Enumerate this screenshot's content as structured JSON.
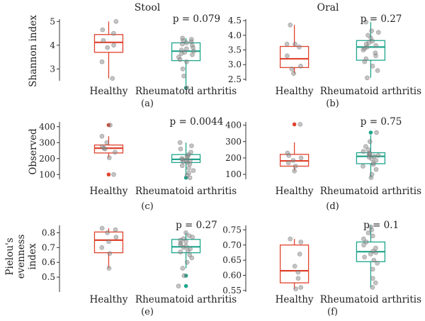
{
  "column_titles": [
    "Stool",
    "Oral"
  ],
  "row_ylabels": [
    [
      "Shannon index"
    ],
    [
      "Observed"
    ],
    [
      "Pielou's",
      "evenness",
      "index"
    ]
  ],
  "colors": {
    "healthy": "#E0432E",
    "ra": "#1FA58C",
    "points": "#8a8a8a",
    "axis": "#333333"
  },
  "chart_data": [
    {
      "type": "box",
      "panel": "(a)",
      "ylabel": "Shannon index",
      "p_value": "p = 0.079",
      "categories": [
        "Healthy",
        "Rheumatoid arthritis"
      ],
      "ylim": [
        2.5,
        5.1
      ],
      "yticks": [
        "3",
        "4",
        "5"
      ],
      "series": [
        {
          "category": "Healthy",
          "min": 2.6,
          "q1": 3.7,
          "median": 4.12,
          "q3": 4.45,
          "max": 5.0,
          "outliers": [],
          "points": [
            2.6,
            3.3,
            3.9,
            4.0,
            4.2,
            4.5,
            4.65,
            5.0
          ]
        },
        {
          "category": "Rheumatoid arthritis",
          "min": 2.3,
          "q1": 3.35,
          "median": 3.75,
          "q3": 4.1,
          "max": 4.3,
          "outliers": [
            2.2
          ],
          "points": [
            2.2,
            2.7,
            3.0,
            3.3,
            3.4,
            3.5,
            3.6,
            3.65,
            3.7,
            3.75,
            3.8,
            3.85,
            3.9,
            4.0,
            4.05,
            4.1,
            4.15,
            4.2,
            4.25,
            4.3
          ]
        }
      ]
    },
    {
      "type": "box",
      "panel": "(b)",
      "ylabel": "",
      "p_value": "p = 0.27",
      "categories": [
        "Healthy",
        "Rheumatoid arthritis"
      ],
      "ylim": [
        2.45,
        4.55
      ],
      "yticks": [
        "2.5",
        "3.0",
        "3.5",
        "4.0",
        "4.5"
      ],
      "series": [
        {
          "category": "Healthy",
          "min": 2.7,
          "q1": 2.9,
          "median": 3.2,
          "q3": 3.62,
          "max": 4.35,
          "outliers": [],
          "points": [
            2.7,
            2.85,
            2.95,
            3.3,
            3.6,
            3.7,
            3.7,
            4.35
          ]
        },
        {
          "category": "Rheumatoid arthritis",
          "min": 2.55,
          "q1": 3.15,
          "median": 3.6,
          "q3": 3.82,
          "max": 4.45,
          "outliers": [],
          "points": [
            2.55,
            2.8,
            2.95,
            3.1,
            3.2,
            3.3,
            3.4,
            3.5,
            3.55,
            3.6,
            3.65,
            3.7,
            3.75,
            3.8,
            3.9,
            4.0,
            4.1,
            4.15,
            4.45
          ]
        }
      ]
    },
    {
      "type": "box",
      "panel": "(c)",
      "ylabel": "Observed",
      "p_value": "p = 0.0044",
      "categories": [
        "Healthy",
        "Rheumatoid arthritis"
      ],
      "ylim": [
        70,
        430
      ],
      "yticks": [
        "100",
        "200",
        "300",
        "400"
      ],
      "series": [
        {
          "category": "Healthy",
          "min": 205,
          "q1": 235,
          "median": 265,
          "q3": 285,
          "max": 340,
          "outliers": [
            100,
            410
          ],
          "points": [
            100,
            205,
            240,
            260,
            265,
            275,
            300,
            340,
            410
          ]
        },
        {
          "category": "Rheumatoid arthritis",
          "min": 95,
          "q1": 175,
          "median": 195,
          "q3": 225,
          "max": 300,
          "outliers": [
            80
          ],
          "points": [
            80,
            95,
            110,
            125,
            140,
            155,
            165,
            175,
            180,
            185,
            190,
            195,
            200,
            210,
            215,
            225,
            240,
            260,
            280,
            300
          ]
        }
      ]
    },
    {
      "type": "box",
      "panel": "(d)",
      "ylabel": "",
      "p_value": "p = 0.75",
      "categories": [
        "Healthy",
        "Rheumatoid arthritis"
      ],
      "ylim": [
        70,
        420
      ],
      "yticks": [
        "100",
        "200",
        "300",
        "400"
      ],
      "series": [
        {
          "category": "Healthy",
          "min": 120,
          "q1": 150,
          "median": 182,
          "q3": 222,
          "max": 295,
          "outliers": [
            405
          ],
          "points": [
            120,
            150,
            170,
            185,
            200,
            215,
            230,
            405
          ]
        },
        {
          "category": "Rheumatoid arthritis",
          "min": 80,
          "q1": 165,
          "median": 210,
          "q3": 232,
          "max": 340,
          "outliers": [
            355
          ],
          "points": [
            80,
            100,
            130,
            150,
            160,
            170,
            185,
            195,
            205,
            210,
            215,
            220,
            225,
            230,
            240,
            250,
            270,
            300,
            355
          ]
        }
      ]
    },
    {
      "type": "box",
      "panel": "(e)",
      "ylabel": "Pielou's evenness index",
      "p_value": "p = 0.27",
      "categories": [
        "Healthy",
        "Rheumatoid arthritis"
      ],
      "ylim": [
        0.4,
        0.85
      ],
      "yticks": [
        "0.5",
        "0.6",
        "0.7",
        "0.8"
      ],
      "series": [
        {
          "category": "Healthy",
          "min": 0.56,
          "q1": 0.665,
          "median": 0.75,
          "q3": 0.805,
          "max": 0.83,
          "outliers": [],
          "points": [
            0.56,
            0.66,
            0.7,
            0.74,
            0.77,
            0.8,
            0.82,
            0.83
          ]
        },
        {
          "category": "Rheumatoid arthritis",
          "min": 0.56,
          "q1": 0.665,
          "median": 0.705,
          "q3": 0.755,
          "max": 0.8,
          "outliers": [
            0.51,
            0.44
          ],
          "points": [
            0.44,
            0.51,
            0.56,
            0.6,
            0.63,
            0.65,
            0.67,
            0.68,
            0.69,
            0.7,
            0.71,
            0.72,
            0.73,
            0.74,
            0.75,
            0.76,
            0.77,
            0.78,
            0.8
          ]
        }
      ]
    },
    {
      "type": "box",
      "panel": "(f)",
      "ylabel": "",
      "p_value": "p = 0.1",
      "categories": [
        "Healthy",
        "Rheumatoid arthritis"
      ],
      "ylim": [
        0.545,
        0.765
      ],
      "yticks": [
        "0.55",
        "0.60",
        "0.65",
        "0.70",
        "0.75"
      ],
      "series": [
        {
          "category": "Healthy",
          "min": 0.555,
          "q1": 0.575,
          "median": 0.615,
          "q3": 0.7,
          "max": 0.72,
          "outliers": [],
          "points": [
            0.555,
            0.56,
            0.59,
            0.61,
            0.63,
            0.67,
            0.71,
            0.72
          ]
        },
        {
          "category": "Rheumatoid arthritis",
          "min": 0.56,
          "q1": 0.645,
          "median": 0.678,
          "q3": 0.71,
          "max": 0.765,
          "outliers": [],
          "points": [
            0.56,
            0.575,
            0.59,
            0.62,
            0.64,
            0.65,
            0.66,
            0.67,
            0.675,
            0.68,
            0.69,
            0.7,
            0.71,
            0.72,
            0.73,
            0.74,
            0.75,
            0.76
          ]
        }
      ]
    }
  ]
}
